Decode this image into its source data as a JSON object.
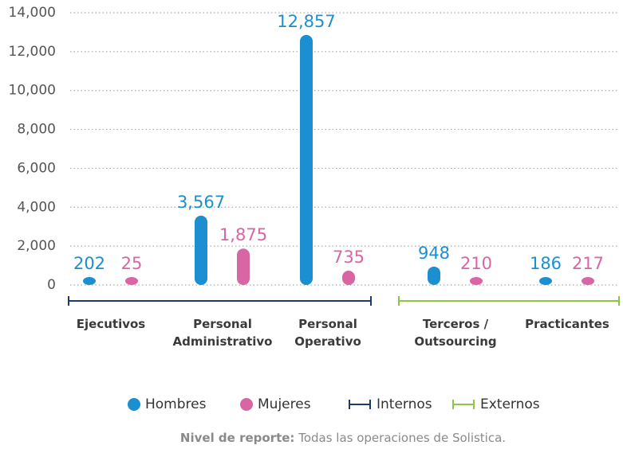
{
  "chart_data": {
    "type": "bar",
    "categories": [
      "Ejecutivos",
      "Personal Administrativo",
      "Personal Operativo",
      "Terceros / Outsourcing",
      "Practicantes"
    ],
    "series": [
      {
        "name": "Hombres",
        "color": "#1b8fd0",
        "values": [
          202,
          3567,
          12857,
          948,
          186
        ],
        "value_labels": [
          "202",
          "3,567",
          "12,857",
          "948",
          "186"
        ]
      },
      {
        "name": "Mujeres",
        "color": "#d766a3",
        "values": [
          25,
          1875,
          735,
          210,
          217
        ],
        "value_labels": [
          "25",
          "1,875",
          "735",
          "210",
          "217"
        ]
      }
    ],
    "groups": [
      {
        "name": "Internos",
        "color": "#1d3a6e",
        "first": 0,
        "last": 2
      },
      {
        "name": "Externos",
        "color": "#8dc641",
        "first": 3,
        "last": 4
      }
    ],
    "ylim": [
      0,
      14000
    ],
    "yticks": [
      0,
      {
        "value": 2000,
        "label": "2,000"
      },
      {
        "value": 4000,
        "label": "4,000"
      },
      {
        "value": 6000,
        "label": "6,000"
      },
      {
        "value": 8000,
        "label": "8,000"
      },
      {
        "value": 10000,
        "label": "10,000"
      },
      {
        "value": 12000,
        "label": "12,000"
      },
      {
        "value": 14000,
        "label": "14,000"
      }
    ],
    "grid": true,
    "note": {
      "label": "Nivel de reporte:",
      "text": "Todas las operaciones de Solistica."
    }
  }
}
